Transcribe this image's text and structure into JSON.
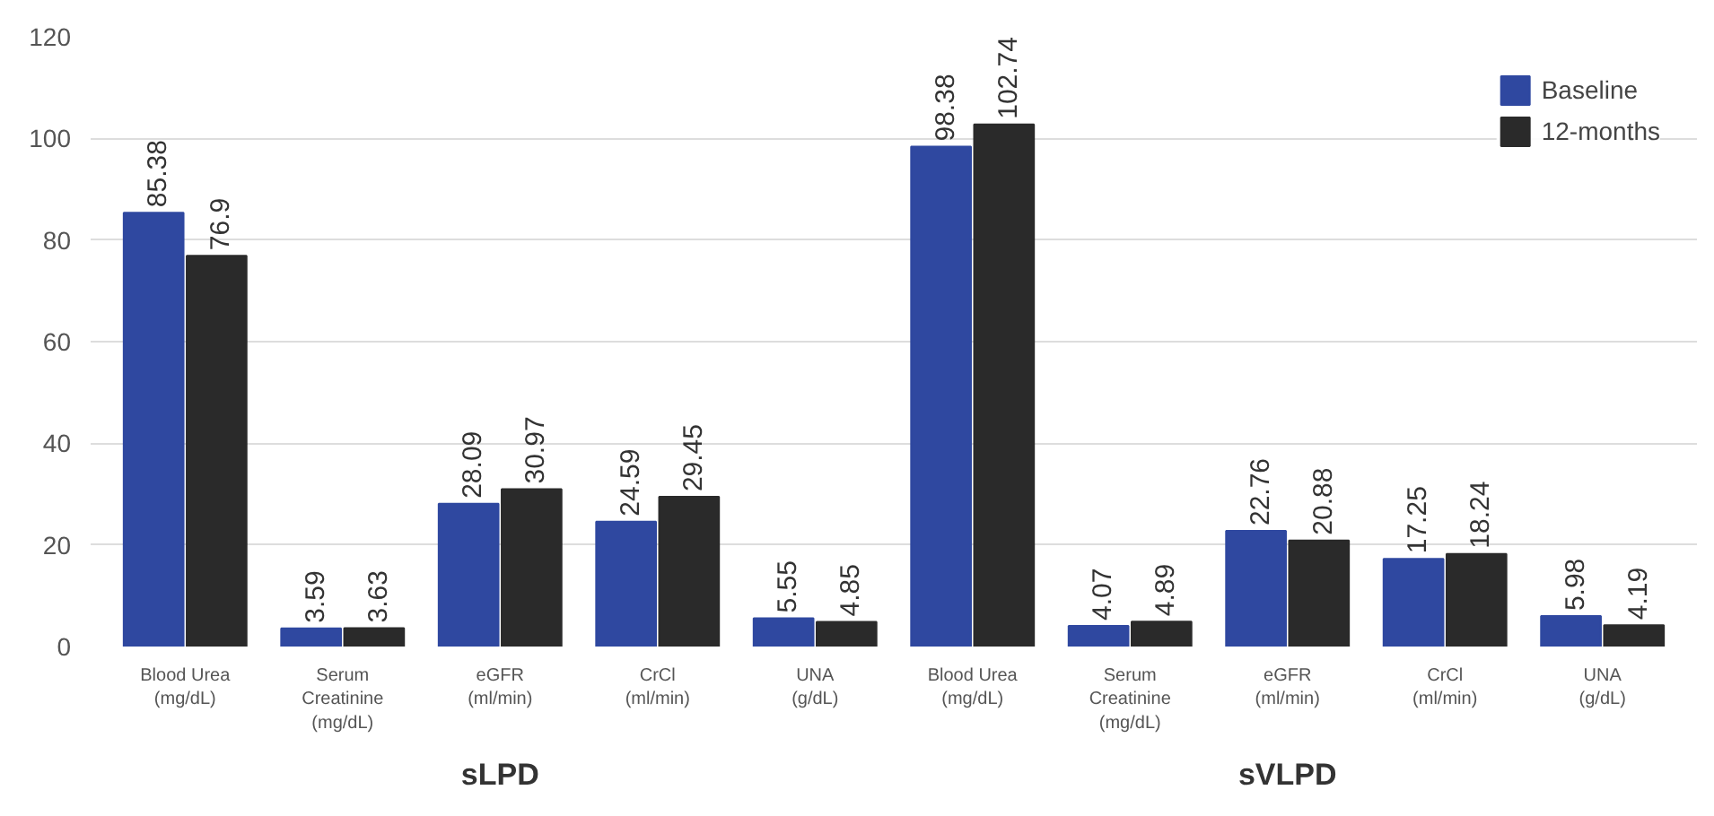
{
  "chart_data": {
    "type": "bar",
    "categories": [
      "Blood Urea\n(mg/dL)",
      "Serum\nCreatinine\n(mg/dL)",
      "eGFR\n(ml/min)",
      "CrCl\n(ml/min)",
      "UNA\n(g/dL)",
      "Blood Urea\n(mg/dL)",
      "Serum\nCreatinine\n(mg/dL)",
      "eGFR\n(ml/min)",
      "CrCl\n(ml/min)",
      "UNA\n(g/dL)"
    ],
    "series": [
      {
        "name": "Baseline",
        "color": "#2f48a0",
        "values": [
          85.38,
          3.59,
          28.09,
          24.59,
          5.55,
          98.38,
          4.07,
          22.76,
          17.25,
          5.98
        ]
      },
      {
        "name": "12-months",
        "color": "#2a2a2a",
        "values": [
          76.9,
          3.63,
          30.97,
          29.45,
          4.85,
          102.74,
          4.89,
          20.88,
          18.24,
          4.19
        ]
      }
    ],
    "ylim": [
      0,
      120
    ],
    "yticks": [
      0,
      20,
      40,
      60,
      80,
      100,
      120
    ],
    "grid": "y",
    "legend": "top right",
    "data_labels": true,
    "annotations": [
      "sLPD",
      "sVLPD"
    ]
  }
}
